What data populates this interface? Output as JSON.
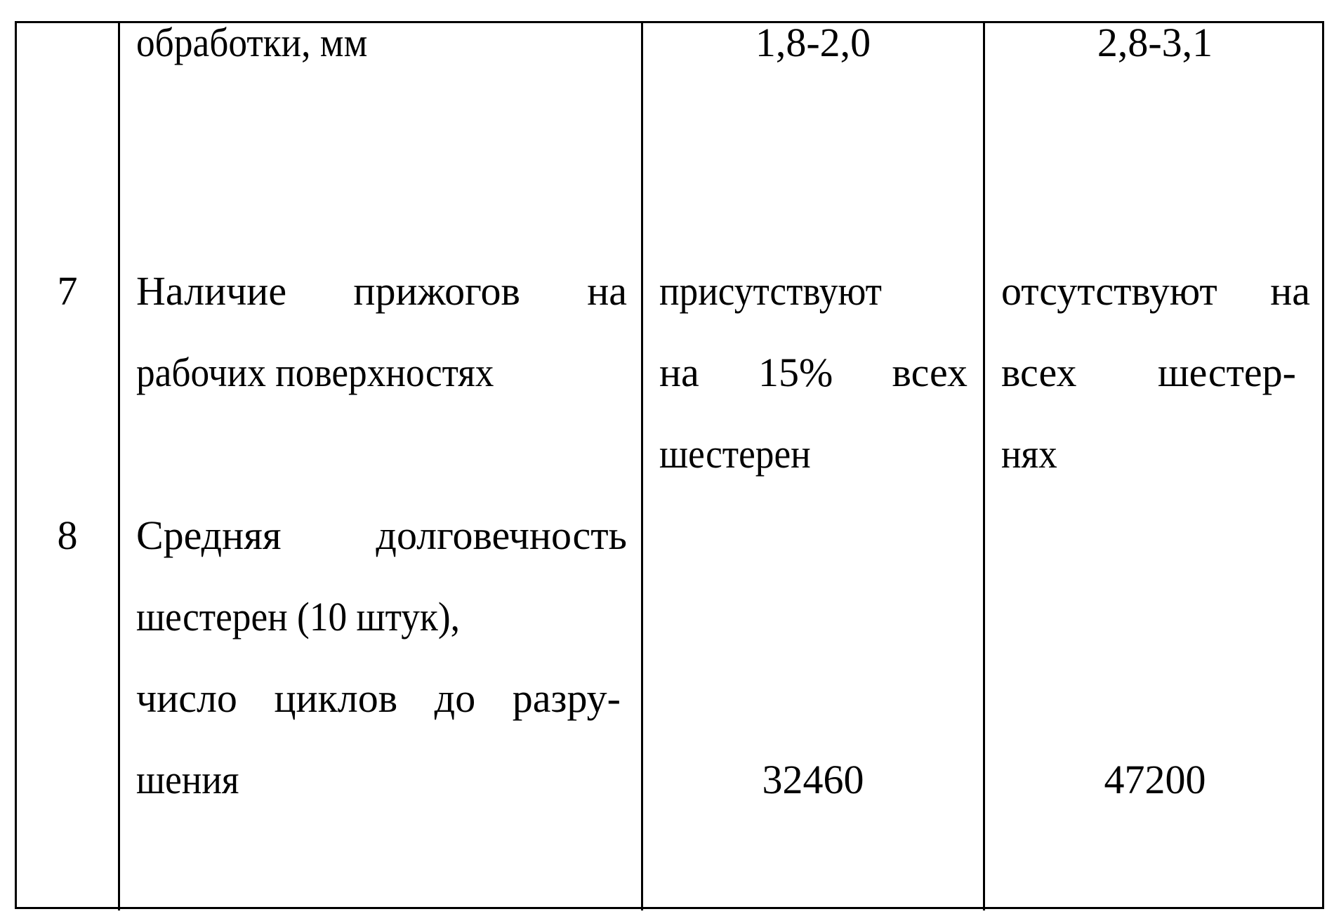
{
  "table": {
    "row_prev": {
      "param": [
        "обработки, мм"
      ],
      "before": "1,8-2,0",
      "after": "2,8-3,1"
    },
    "row7": {
      "num": "7",
      "param": [
        "Наличие прижогов на",
        "рабочих поверхностях"
      ],
      "before": [
        "присутствуют",
        "на 15% всех",
        "шестерен"
      ],
      "after": [
        "отсутствуют на",
        "всех шестер-",
        "нях"
      ]
    },
    "row8": {
      "num": "8",
      "param": [
        "Средняя долговечность",
        "шестерен (10 штук),",
        "число циклов до разру-",
        "шения"
      ],
      "before": "32460",
      "after": "47200"
    }
  }
}
